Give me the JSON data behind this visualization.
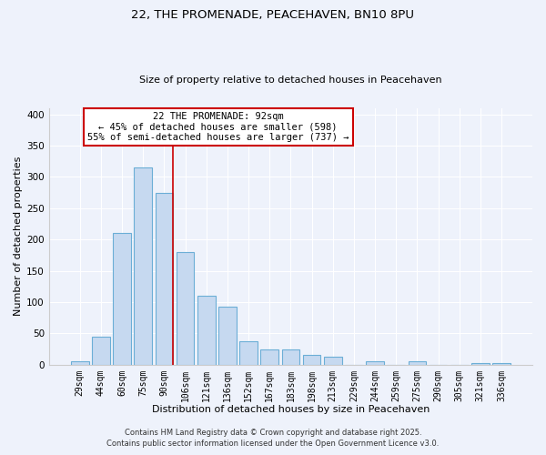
{
  "title1": "22, THE PROMENADE, PEACEHAVEN, BN10 8PU",
  "title2": "Size of property relative to detached houses in Peacehaven",
  "xlabel": "Distribution of detached houses by size in Peacehaven",
  "ylabel": "Number of detached properties",
  "categories": [
    "29sqm",
    "44sqm",
    "60sqm",
    "75sqm",
    "90sqm",
    "106sqm",
    "121sqm",
    "136sqm",
    "152sqm",
    "167sqm",
    "183sqm",
    "198sqm",
    "213sqm",
    "229sqm",
    "244sqm",
    "259sqm",
    "275sqm",
    "290sqm",
    "305sqm",
    "321sqm",
    "336sqm"
  ],
  "values": [
    5,
    44,
    210,
    315,
    275,
    180,
    110,
    93,
    38,
    24,
    24,
    15,
    12,
    0,
    5,
    0,
    5,
    0,
    0,
    2,
    2
  ],
  "bar_color": "#c6d9f0",
  "bar_edgecolor": "#6baed6",
  "bar_linewidth": 0.8,
  "vline_color": "#cc0000",
  "vline_linewidth": 1.2,
  "annotation_line1": "22 THE PROMENADE: 92sqm",
  "annotation_line2": "← 45% of detached houses are smaller (598)",
  "annotation_line3": "55% of semi-detached houses are larger (737) →",
  "annotation_box_facecolor": "#ffffff",
  "annotation_box_edgecolor": "#cc0000",
  "annotation_fontsize": 7.5,
  "ylim": [
    0,
    410
  ],
  "yticks": [
    0,
    50,
    100,
    150,
    200,
    250,
    300,
    350,
    400
  ],
  "background_color": "#eef2fb",
  "grid_color": "#ffffff",
  "footer1": "Contains HM Land Registry data © Crown copyright and database right 2025.",
  "footer2": "Contains public sector information licensed under the Open Government Licence v3.0.",
  "footer_fontsize": 6.0,
  "title1_fontsize": 9.5,
  "title2_fontsize": 8.0,
  "xlabel_fontsize": 8.0,
  "ylabel_fontsize": 8.0,
  "xtick_fontsize": 7.0,
  "ytick_fontsize": 7.5
}
